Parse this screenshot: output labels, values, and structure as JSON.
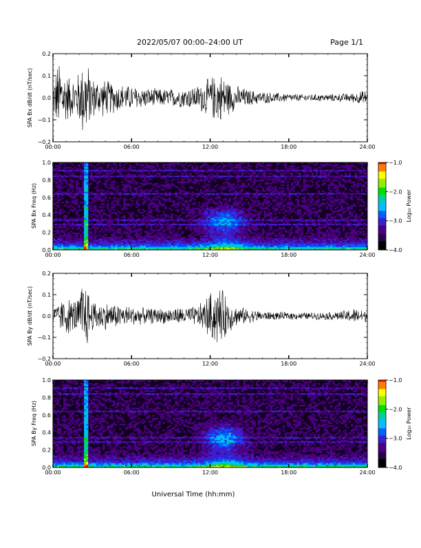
{
  "header": {
    "title": "2022/05/07  00:00–24:00 UT",
    "page": "Page 1/1"
  },
  "xlabel": "Universal Time (hh:mm)",
  "colorbar_colors": [
    "#000000",
    "#2a004a",
    "#4b0082",
    "#3b1fd0",
    "#0060ff",
    "#00c0ff",
    "#00d0a0",
    "#00e000",
    "#90f000",
    "#ffff00",
    "#ff8000",
    "#ff0000"
  ],
  "chart_data": [
    {
      "type": "line",
      "ylabel": "SPA Bx dB/dt (nT/sec)",
      "xlim": [
        0,
        24
      ],
      "ylim": [
        -0.2,
        0.2
      ],
      "xticks": [
        "00:00",
        "06:00",
        "12:00",
        "18:00",
        "24:00"
      ],
      "yticks": [
        "−0.2",
        "−0.1",
        "0.0",
        "0.1",
        "0.2"
      ],
      "ytick_values": [
        -0.2,
        -0.1,
        0.0,
        0.1,
        0.2
      ],
      "series": [
        {
          "x": [
            0,
            0.5,
            1,
            1.5,
            2,
            2.3,
            2.5,
            3,
            4,
            5,
            6,
            7,
            8,
            9,
            10,
            11,
            11.5,
            12,
            12.5,
            13,
            13.5,
            14,
            15,
            16,
            17,
            18,
            19,
            20,
            21,
            22,
            23,
            24
          ],
          "y_amplitude": [
            0.08,
            0.2,
            0.12,
            0.1,
            0.13,
            0.2,
            0.2,
            0.1,
            0.09,
            0.07,
            0.06,
            0.05,
            0.045,
            0.045,
            0.05,
            0.06,
            0.08,
            0.1,
            0.12,
            0.12,
            0.08,
            0.06,
            0.04,
            0.03,
            0.025,
            0.02,
            0.018,
            0.018,
            0.018,
            0.02,
            0.025,
            0.04
          ]
        }
      ]
    },
    {
      "type": "heatmap",
      "ylabel": "SPA Bx Freq (Hz)",
      "colorbar_label": "Log₁₀ Power",
      "xlim": [
        0,
        24
      ],
      "ylim": [
        0,
        1.0
      ],
      "clim": [
        -4.0,
        -1.0
      ],
      "xticks": [
        "00:00",
        "06:00",
        "12:00",
        "18:00",
        "24:00"
      ],
      "yticks": [
        "0.0",
        "0.2",
        "0.4",
        "0.6",
        "0.8",
        "1.0"
      ],
      "ytick_values": [
        0,
        0.2,
        0.4,
        0.6,
        0.8,
        1.0
      ],
      "cticks": [
        "−1.0",
        "−2.0",
        "−3.0",
        "−4.0"
      ],
      "ctick_values": [
        -1.0,
        -2.0,
        -3.0,
        -4.0
      ]
    },
    {
      "type": "line",
      "ylabel": "SPA By dB/dt (nT/sec)",
      "xlim": [
        0,
        24
      ],
      "ylim": [
        -0.2,
        0.2
      ],
      "xticks": [
        "00:00",
        "06:00",
        "12:00",
        "18:00",
        "24:00"
      ],
      "yticks": [
        "−0.2",
        "−0.1",
        "0.0",
        "0.1",
        "0.2"
      ],
      "ytick_values": [
        -0.2,
        -0.1,
        0.0,
        0.1,
        0.2
      ],
      "series": [
        {
          "x": [
            0,
            0.5,
            1,
            1.5,
            2,
            2.3,
            2.5,
            3,
            4,
            5,
            6,
            7,
            8,
            9,
            10,
            11,
            11.5,
            12,
            12.5,
            13,
            13.5,
            14,
            15,
            16,
            17,
            18,
            19,
            20,
            21,
            22,
            23,
            24
          ],
          "y_amplitude": [
            0.04,
            0.07,
            0.1,
            0.08,
            0.1,
            0.2,
            0.18,
            0.08,
            0.07,
            0.06,
            0.05,
            0.04,
            0.04,
            0.04,
            0.045,
            0.05,
            0.08,
            0.12,
            0.15,
            0.13,
            0.08,
            0.05,
            0.035,
            0.025,
            0.02,
            0.02,
            0.018,
            0.018,
            0.02,
            0.025,
            0.04,
            0.03
          ]
        }
      ]
    },
    {
      "type": "heatmap",
      "ylabel": "SPA By Freq (Hz)",
      "colorbar_label": "Log₁₀ Power",
      "xlim": [
        0,
        24
      ],
      "ylim": [
        0,
        1.0
      ],
      "clim": [
        -4.0,
        -1.0
      ],
      "xticks": [
        "00:00",
        "06:00",
        "12:00",
        "18:00",
        "24:00"
      ],
      "yticks": [
        "0.0",
        "0.2",
        "0.4",
        "0.6",
        "0.8",
        "1.0"
      ],
      "ytick_values": [
        0,
        0.2,
        0.4,
        0.6,
        0.8,
        1.0
      ],
      "cticks": [
        "−1.0",
        "−2.0",
        "−3.0",
        "−4.0"
      ],
      "ctick_values": [
        -1.0,
        -2.0,
        -3.0,
        -4.0
      ]
    }
  ]
}
